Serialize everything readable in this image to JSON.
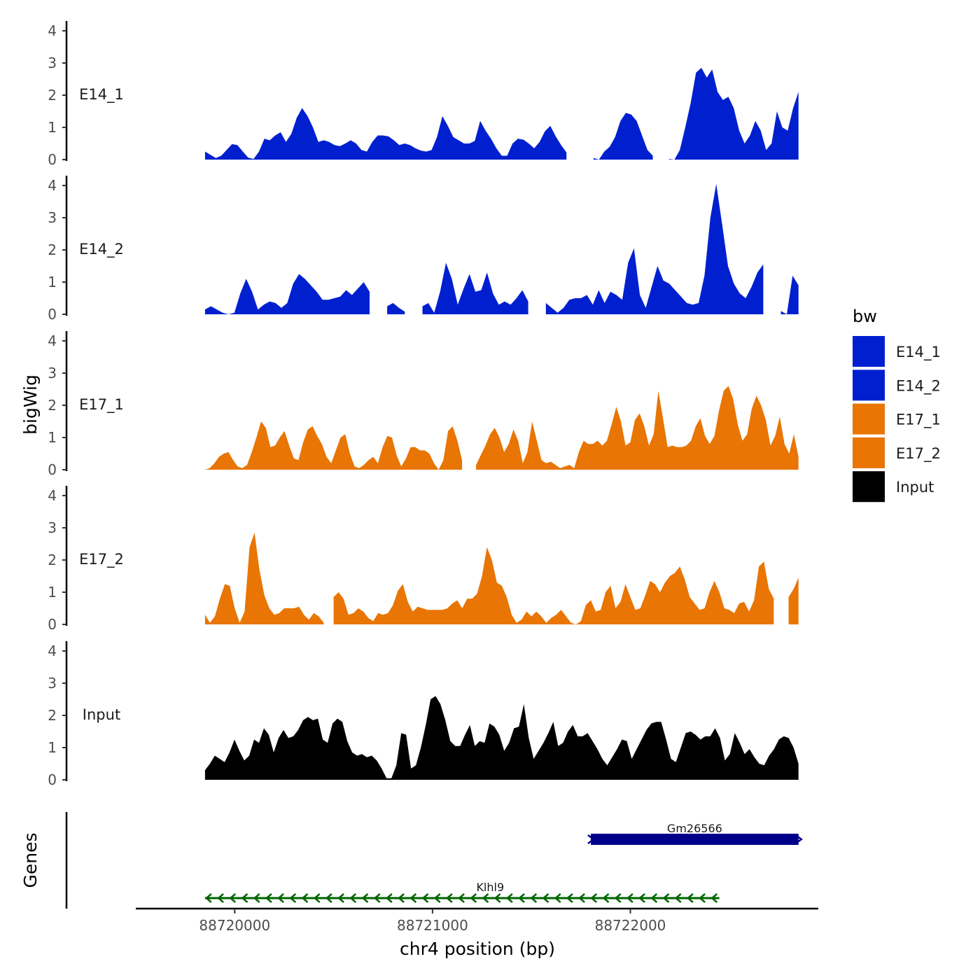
{
  "chart_data": {
    "type": "area",
    "title": "",
    "ylabel": "bigWig",
    "genes_label": "Genes",
    "xlabel": "chr4 position (bp)",
    "xlim": [
      88719500,
      88722950
    ],
    "ylim": [
      0,
      4.2
    ],
    "yticks": [
      0,
      1,
      2,
      3,
      4
    ],
    "xticks": [
      88720000,
      88721000,
      88722000
    ],
    "xtick_labels": [
      "88720000",
      "88721000",
      "88722000"
    ],
    "data_range": [
      88719850,
      88722850
    ],
    "legend": {
      "title": "bw",
      "position": "right",
      "entries": [
        {
          "label": "E14_1",
          "color": "#0020D0"
        },
        {
          "label": "E14_2",
          "color": "#0020D0"
        },
        {
          "label": "E17_1",
          "color": "#E87504"
        },
        {
          "label": "E17_2",
          "color": "#E87504"
        },
        {
          "label": "Input",
          "color": "#000000"
        }
      ]
    },
    "series": [
      {
        "name": "E14_1",
        "color": "#0020D0",
        "values": [
          0.25,
          0.15,
          0.05,
          0.12,
          0.3,
          0.48,
          0.45,
          0.25,
          0.06,
          0.02,
          0.25,
          0.65,
          0.6,
          0.75,
          0.85,
          0.55,
          0.8,
          1.3,
          1.6,
          1.35,
          1.0,
          0.55,
          0.6,
          0.55,
          0.45,
          0.42,
          0.5,
          0.6,
          0.5,
          0.3,
          0.25,
          0.55,
          0.75,
          0.75,
          0.72,
          0.6,
          0.45,
          0.5,
          0.45,
          0.35,
          0.28,
          0.25,
          0.3,
          0.7,
          1.35,
          1.05,
          0.7,
          0.6,
          0.5,
          0.5,
          0.58,
          1.2,
          0.9,
          0.65,
          0.35,
          0.12,
          0.12,
          0.5,
          0.65,
          0.62,
          0.5,
          0.35,
          0.55,
          0.88,
          1.05,
          0.72,
          0.45,
          0.22,
          0.05,
          0.45,
          0.9,
          0.55,
          0.05,
          0.0,
          0.25,
          0.4,
          0.7,
          1.2,
          1.45,
          1.4,
          1.2,
          0.75,
          0.3,
          0.12,
          0.1,
          0.12,
          0.02,
          0.0,
          0.3,
          1.0,
          1.75,
          2.7,
          2.85,
          2.55,
          2.8,
          2.1,
          1.85,
          1.95,
          1.6,
          0.9,
          0.5,
          0.75,
          1.2,
          0.9,
          0.3,
          0.5,
          1.5,
          1.0,
          0.9,
          1.6,
          2.1
        ],
        "gaps": [
          [
            88721690,
            88721790
          ],
          [
            88722120,
            88722180
          ]
        ]
      },
      {
        "name": "E14_2",
        "color": "#0020D0",
        "values": [
          0.15,
          0.25,
          0.15,
          0.05,
          0.0,
          0.05,
          0.65,
          1.1,
          0.7,
          0.15,
          0.3,
          0.4,
          0.35,
          0.2,
          0.35,
          0.95,
          1.25,
          1.1,
          0.9,
          0.7,
          0.45,
          0.45,
          0.5,
          0.55,
          0.75,
          0.6,
          0.8,
          1.0,
          0.7,
          0.35,
          0.2,
          0.25,
          0.35,
          0.2,
          0.08,
          0.02,
          0.1,
          0.25,
          0.35,
          0.05,
          0.7,
          1.6,
          1.1,
          0.3,
          0.8,
          1.25,
          0.7,
          0.75,
          1.3,
          0.65,
          0.3,
          0.4,
          0.3,
          0.5,
          0.75,
          0.4,
          0.05,
          0.15,
          0.35,
          0.2,
          0.05,
          0.2,
          0.45,
          0.5,
          0.5,
          0.6,
          0.3,
          0.75,
          0.35,
          0.7,
          0.6,
          0.45,
          1.6,
          2.05,
          0.6,
          0.2,
          0.85,
          1.5,
          1.05,
          0.95,
          0.75,
          0.55,
          0.35,
          0.3,
          0.35,
          1.2,
          3.0,
          4.05,
          2.8,
          1.5,
          0.95,
          0.65,
          0.5,
          0.85,
          1.3,
          1.55,
          1.5,
          0.75,
          0.1,
          0.0,
          1.2,
          0.9
        ],
        "gaps": [
          [
            88720700,
            88720760
          ],
          [
            88720870,
            88720940
          ],
          [
            88721510,
            88721560
          ],
          [
            88722700,
            88722740
          ]
        ]
      },
      {
        "name": "E17_1",
        "color": "#E87504",
        "values": [
          0.0,
          0.05,
          0.2,
          0.4,
          0.5,
          0.55,
          0.3,
          0.1,
          0.05,
          0.15,
          0.55,
          1.0,
          1.5,
          1.3,
          0.7,
          0.75,
          1.0,
          1.2,
          0.75,
          0.35,
          0.3,
          0.85,
          1.25,
          1.35,
          1.05,
          0.8,
          0.4,
          0.2,
          0.6,
          1.0,
          1.1,
          0.5,
          0.1,
          0.05,
          0.15,
          0.3,
          0.4,
          0.2,
          0.7,
          1.05,
          1.0,
          0.45,
          0.1,
          0.35,
          0.7,
          0.7,
          0.6,
          0.6,
          0.5,
          0.2,
          0.0,
          0.3,
          1.2,
          1.35,
          0.9,
          0.3,
          0.05,
          0.0,
          0.15,
          0.45,
          0.75,
          1.1,
          1.3,
          1.0,
          0.55,
          0.8,
          1.25,
          0.9,
          0.2,
          0.55,
          1.5,
          0.9,
          0.3,
          0.2,
          0.25,
          0.15,
          0.05,
          0.1,
          0.15,
          0.05,
          0.55,
          0.9,
          0.8,
          0.8,
          0.9,
          0.75,
          0.9,
          1.4,
          1.95,
          1.5,
          0.75,
          0.85,
          1.55,
          1.75,
          1.35,
          0.75,
          1.1,
          2.45,
          1.6,
          0.7,
          0.75,
          0.7,
          0.7,
          0.75,
          0.9,
          1.35,
          1.6,
          1.05,
          0.8,
          1.05,
          1.85,
          2.45,
          2.6,
          2.2,
          1.4,
          0.9,
          1.1,
          1.9,
          2.3,
          2.0,
          1.55,
          0.75,
          1.05,
          1.65,
          0.8,
          0.5,
          1.1,
          0.4
        ],
        "gaps": [
          [
            88721170,
            88721220
          ]
        ]
      },
      {
        "name": "E17_2",
        "color": "#E87504",
        "values": [
          0.3,
          0.05,
          0.25,
          0.8,
          1.25,
          1.2,
          0.5,
          0.05,
          0.4,
          2.4,
          2.85,
          1.7,
          0.9,
          0.5,
          0.3,
          0.35,
          0.5,
          0.5,
          0.5,
          0.55,
          0.3,
          0.15,
          0.35,
          0.25,
          0.05,
          0.3,
          0.85,
          1.0,
          0.8,
          0.3,
          0.35,
          0.5,
          0.4,
          0.2,
          0.1,
          0.35,
          0.3,
          0.35,
          0.6,
          1.05,
          1.25,
          0.7,
          0.4,
          0.55,
          0.5,
          0.45,
          0.45,
          0.45,
          0.45,
          0.5,
          0.65,
          0.75,
          0.5,
          0.8,
          0.8,
          0.95,
          1.5,
          2.4,
          2.0,
          1.3,
          1.2,
          0.85,
          0.3,
          0.05,
          0.15,
          0.4,
          0.25,
          0.4,
          0.25,
          0.05,
          0.2,
          0.3,
          0.45,
          0.25,
          0.05,
          0.0,
          0.1,
          0.6,
          0.75,
          0.4,
          0.45,
          1.0,
          1.2,
          0.5,
          0.7,
          1.25,
          0.85,
          0.45,
          0.5,
          0.9,
          1.35,
          1.25,
          1.0,
          1.3,
          1.5,
          1.6,
          1.8,
          1.4,
          0.85,
          0.65,
          0.45,
          0.5,
          1.0,
          1.35,
          1.0,
          0.5,
          0.45,
          0.35,
          0.65,
          0.7,
          0.4,
          0.75,
          1.8,
          1.95,
          1.1,
          0.8,
          1.25,
          0.6,
          0.85,
          1.1,
          1.45
        ],
        "gaps": [
          [
            88720450,
            88720490
          ],
          [
            88722730,
            88722790
          ]
        ]
      },
      {
        "name": "Input",
        "color": "#000000",
        "values": [
          0.3,
          0.5,
          0.75,
          0.65,
          0.55,
          0.85,
          1.25,
          0.9,
          0.6,
          0.75,
          1.25,
          1.15,
          1.6,
          1.4,
          0.85,
          1.3,
          1.55,
          1.3,
          1.35,
          1.55,
          1.85,
          1.95,
          1.85,
          1.9,
          1.25,
          1.15,
          1.75,
          1.9,
          1.8,
          1.2,
          0.85,
          0.75,
          0.8,
          0.7,
          0.75,
          0.6,
          0.35,
          0.05,
          0.05,
          0.45,
          1.45,
          1.4,
          0.35,
          0.45,
          1.0,
          1.7,
          2.5,
          2.6,
          2.35,
          1.85,
          1.2,
          1.05,
          1.05,
          1.4,
          1.7,
          1.05,
          1.2,
          1.15,
          1.75,
          1.65,
          1.4,
          0.9,
          1.15,
          1.6,
          1.65,
          2.35,
          1.3,
          0.65,
          0.9,
          1.15,
          1.45,
          1.8,
          1.05,
          1.15,
          1.5,
          1.7,
          1.35,
          1.35,
          1.45,
          1.2,
          0.95,
          0.65,
          0.45,
          0.7,
          0.95,
          1.25,
          1.2,
          0.65,
          0.95,
          1.25,
          1.55,
          1.75,
          1.8,
          1.8,
          1.25,
          0.65,
          0.55,
          1.0,
          1.45,
          1.5,
          1.4,
          1.25,
          1.35,
          1.35,
          1.6,
          1.3,
          0.6,
          0.8,
          1.45,
          1.15,
          0.8,
          0.95,
          0.7,
          0.5,
          0.45,
          0.75,
          0.95,
          1.25,
          1.35,
          1.3,
          1.0,
          0.5
        ],
        "gaps": []
      }
    ],
    "genes": [
      {
        "name": "Gm26566",
        "start": 88721800,
        "end": 88722850,
        "strand": "+",
        "color": "#00008B",
        "style": "thick"
      },
      {
        "name": "Klhl9",
        "start": 88719850,
        "end": 88722450,
        "strand": "-",
        "color": "#006400",
        "style": "arrows"
      }
    ]
  }
}
